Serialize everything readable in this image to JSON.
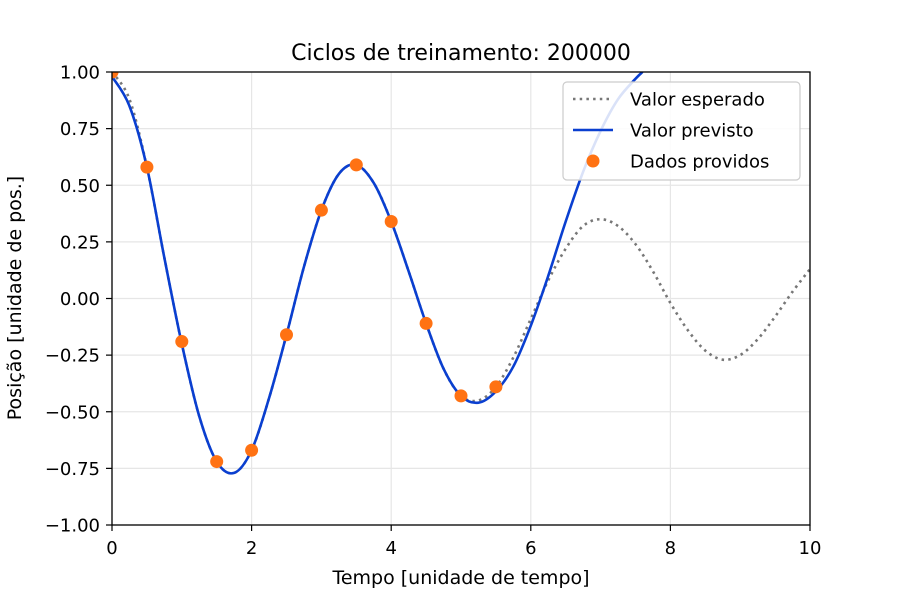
{
  "chart_data": {
    "type": "line",
    "title": "Ciclos de treinamento: 200000",
    "xlabel": "Tempo [unidade de tempo]",
    "ylabel": "Posição [unidade de pos.]",
    "xlim": [
      0,
      10
    ],
    "ylim": [
      -1.0,
      1.0
    ],
    "x_ticks": [
      0,
      2,
      4,
      6,
      8,
      10
    ],
    "x_tick_labels": [
      "0",
      "2",
      "4",
      "6",
      "8",
      "10"
    ],
    "y_ticks": [
      -1.0,
      -0.75,
      -0.5,
      -0.25,
      0.0,
      0.25,
      0.5,
      0.75,
      1.0
    ],
    "y_tick_labels": [
      "−1.00",
      "−0.75",
      "−0.50",
      "−0.25",
      "0.00",
      "0.25",
      "0.50",
      "0.75",
      "1.00"
    ],
    "grid": true,
    "legend_position": "top-right",
    "series": [
      {
        "name": "Valor esperado",
        "style": "dotted",
        "color": "#777777",
        "points": [
          [
            0,
            1.0
          ],
          [
            0.25,
            0.88
          ],
          [
            0.5,
            0.58
          ],
          [
            0.75,
            0.18
          ],
          [
            1.0,
            -0.2
          ],
          [
            1.25,
            -0.52
          ],
          [
            1.5,
            -0.72
          ],
          [
            1.75,
            -0.77
          ],
          [
            2.0,
            -0.67
          ],
          [
            2.25,
            -0.44
          ],
          [
            2.5,
            -0.16
          ],
          [
            2.75,
            0.14
          ],
          [
            3.0,
            0.39
          ],
          [
            3.25,
            0.55
          ],
          [
            3.5,
            0.59
          ],
          [
            3.75,
            0.51
          ],
          [
            4.0,
            0.34
          ],
          [
            4.25,
            0.12
          ],
          [
            4.5,
            -0.11
          ],
          [
            4.75,
            -0.31
          ],
          [
            5.0,
            -0.43
          ],
          [
            5.25,
            -0.45
          ],
          [
            5.5,
            -0.39
          ],
          [
            5.75,
            -0.26
          ],
          [
            6.0,
            -0.09
          ],
          [
            6.25,
            0.08
          ],
          [
            6.5,
            0.22
          ],
          [
            6.75,
            0.32
          ],
          [
            7.0,
            0.35
          ],
          [
            7.25,
            0.32
          ],
          [
            7.5,
            0.24
          ],
          [
            7.75,
            0.12
          ],
          [
            8.0,
            -0.02
          ],
          [
            8.25,
            -0.14
          ],
          [
            8.5,
            -0.23
          ],
          [
            8.75,
            -0.27
          ],
          [
            9.0,
            -0.25
          ],
          [
            9.25,
            -0.18
          ],
          [
            9.5,
            -0.08
          ],
          [
            9.75,
            0.03
          ],
          [
            10.0,
            0.13
          ]
        ]
      },
      {
        "name": "Valor previsto",
        "style": "solid",
        "color": "#0a3fd0",
        "points": [
          [
            0,
            0.98
          ],
          [
            0.25,
            0.85
          ],
          [
            0.5,
            0.58
          ],
          [
            0.75,
            0.18
          ],
          [
            1.0,
            -0.2
          ],
          [
            1.25,
            -0.52
          ],
          [
            1.5,
            -0.72
          ],
          [
            1.75,
            -0.77
          ],
          [
            2.0,
            -0.67
          ],
          [
            2.25,
            -0.44
          ],
          [
            2.5,
            -0.16
          ],
          [
            2.75,
            0.14
          ],
          [
            3.0,
            0.39
          ],
          [
            3.25,
            0.55
          ],
          [
            3.5,
            0.59
          ],
          [
            3.75,
            0.51
          ],
          [
            4.0,
            0.34
          ],
          [
            4.25,
            0.12
          ],
          [
            4.5,
            -0.11
          ],
          [
            4.75,
            -0.31
          ],
          [
            5.0,
            -0.43
          ],
          [
            5.25,
            -0.46
          ],
          [
            5.5,
            -0.41
          ],
          [
            5.75,
            -0.3
          ],
          [
            6.0,
            -0.12
          ],
          [
            6.25,
            0.1
          ],
          [
            6.5,
            0.34
          ],
          [
            6.75,
            0.56
          ],
          [
            7.0,
            0.74
          ],
          [
            7.25,
            0.88
          ],
          [
            7.5,
            0.97
          ],
          [
            7.6,
            1.0
          ]
        ]
      },
      {
        "name": "Dados providos",
        "style": "markers",
        "color": "#ff7213",
        "points": [
          [
            0,
            1.0
          ],
          [
            0.5,
            0.58
          ],
          [
            1.0,
            -0.19
          ],
          [
            1.5,
            -0.72
          ],
          [
            2.0,
            -0.67
          ],
          [
            2.5,
            -0.16
          ],
          [
            3.0,
            0.39
          ],
          [
            3.5,
            0.59
          ],
          [
            4.0,
            0.34
          ],
          [
            4.5,
            -0.11
          ],
          [
            5.0,
            -0.43
          ],
          [
            5.5,
            -0.39
          ]
        ]
      }
    ]
  }
}
